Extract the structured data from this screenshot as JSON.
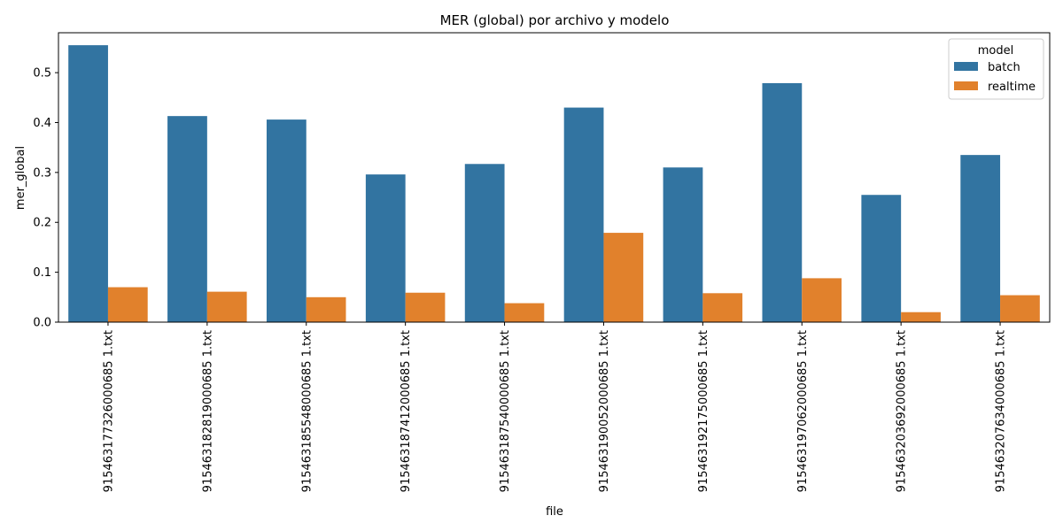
{
  "chart_data": {
    "type": "bar",
    "title": "MER (global) por archivo y modelo",
    "xlabel": "file",
    "ylabel": "mer_global",
    "categories": [
      "915463177326000685 1.txt",
      "915463182819000685 1.txt",
      "915463185548000685 1.txt",
      "915463187412000685 1.txt",
      "915463187540000685 1.txt",
      "915463190052000685 1.txt",
      "915463192175000685 1.txt",
      "915463197062000685 1.txt",
      "915463203692000685 1.txt",
      "915463207634000685 1.txt"
    ],
    "series": [
      {
        "name": "batch",
        "color": "#3274a1",
        "values": [
          0.555,
          0.413,
          0.406,
          0.296,
          0.317,
          0.43,
          0.31,
          0.479,
          0.255,
          0.335
        ]
      },
      {
        "name": "realtime",
        "color": "#e1812c",
        "values": [
          0.07,
          0.061,
          0.05,
          0.059,
          0.038,
          0.179,
          0.058,
          0.088,
          0.02,
          0.054
        ]
      }
    ],
    "ylim": [
      0,
      0.58
    ],
    "yticks": [
      0.0,
      0.1,
      0.2,
      0.3,
      0.4,
      0.5
    ],
    "ytick_labels": [
      "0.0",
      "0.1",
      "0.2",
      "0.3",
      "0.4",
      "0.5"
    ],
    "legend": {
      "title": "model",
      "position": "top-right"
    },
    "grid": false
  }
}
